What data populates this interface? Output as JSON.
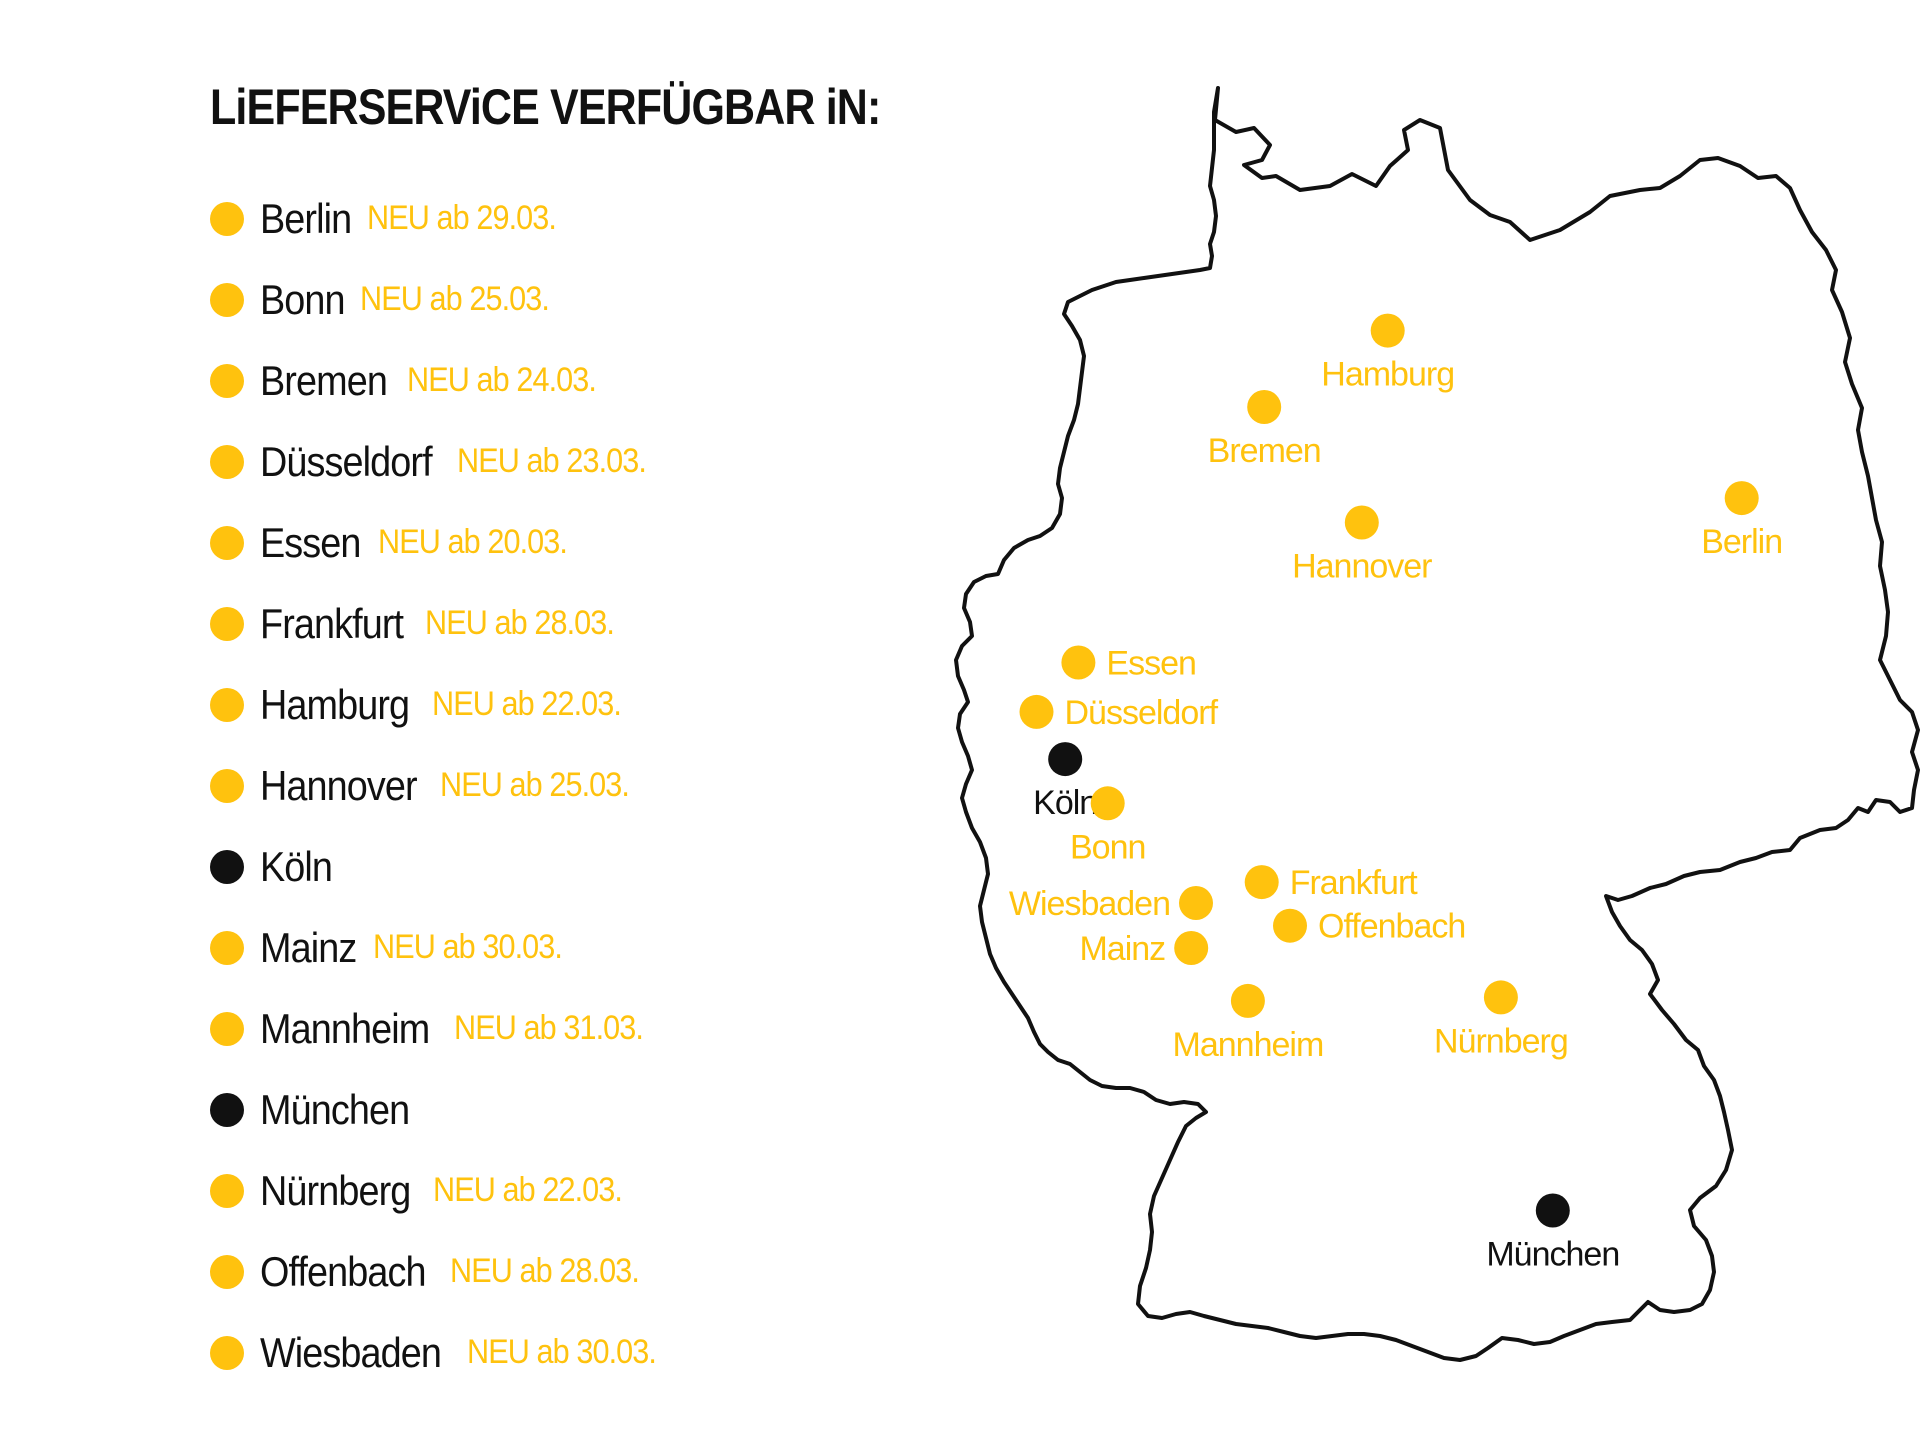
{
  "title": "LiEFERSERViCE VERFÜGBAR iN:",
  "colors": {
    "new": "#FFC20E",
    "existing": "#111111",
    "border": "#111111"
  },
  "cities": [
    {
      "name": "Berlin",
      "new_label": "NEU ab 29.03.",
      "status": "new"
    },
    {
      "name": "Bonn",
      "new_label": "NEU ab 25.03.",
      "status": "new"
    },
    {
      "name": "Bremen",
      "new_label": "NEU ab 24.03.",
      "status": "new"
    },
    {
      "name": "Düsseldorf",
      "new_label": "NEU ab 23.03.",
      "status": "new"
    },
    {
      "name": "Essen",
      "new_label": "NEU ab 20.03.",
      "status": "new"
    },
    {
      "name": "Frankfurt",
      "new_label": "NEU ab 28.03.",
      "status": "new"
    },
    {
      "name": "Hamburg",
      "new_label": "NEU ab 22.03.",
      "status": "new"
    },
    {
      "name": "Hannover",
      "new_label": "NEU ab 25.03.",
      "status": "new"
    },
    {
      "name": "Köln",
      "new_label": "",
      "status": "existing"
    },
    {
      "name": "Mainz",
      "new_label": "NEU ab 30.03.",
      "status": "new"
    },
    {
      "name": "Mannheim",
      "new_label": "NEU ab 31.03.",
      "status": "new"
    },
    {
      "name": "München",
      "new_label": "",
      "status": "existing"
    },
    {
      "name": "Nürnberg",
      "new_label": "NEU ab 22.03.",
      "status": "new"
    },
    {
      "name": "Offenbach",
      "new_label": "NEU ab 28.03.",
      "status": "new"
    },
    {
      "name": "Wiesbaden",
      "new_label": "NEU ab 30.03.",
      "status": "new"
    }
  ],
  "map": {
    "markers": [
      {
        "name": "Hamburg",
        "status": "new",
        "lat": 53.55,
        "lon": 9.99
      },
      {
        "name": "Bremen",
        "status": "new",
        "lat": 53.08,
        "lon": 8.8
      },
      {
        "name": "Hannover",
        "status": "new",
        "lat": 52.37,
        "lon": 9.74
      },
      {
        "name": "Berlin",
        "status": "new",
        "lat": 52.52,
        "lon": 13.4
      },
      {
        "name": "Essen",
        "status": "new",
        "lat": 51.46,
        "lon": 7.01
      },
      {
        "name": "Düsseldorf",
        "status": "new",
        "lat": 51.23,
        "lon": 6.78
      },
      {
        "name": "Köln",
        "status": "existing",
        "lat": 50.94,
        "lon": 6.96
      },
      {
        "name": "Bonn",
        "status": "new",
        "lat": 50.73,
        "lon": 7.1
      },
      {
        "name": "Wiesbaden",
        "status": "new",
        "lat": 50.08,
        "lon": 8.24
      },
      {
        "name": "Frankfurt",
        "status": "new",
        "lat": 50.11,
        "lon": 8.68
      },
      {
        "name": "Mainz",
        "status": "new",
        "lat": 50.0,
        "lon": 8.27
      },
      {
        "name": "Offenbach",
        "status": "new",
        "lat": 50.1,
        "lon": 8.76
      },
      {
        "name": "Mannheim",
        "status": "new",
        "lat": 49.49,
        "lon": 8.47
      },
      {
        "name": "Nürnberg",
        "status": "new",
        "lat": 49.45,
        "lon": 11.08
      },
      {
        "name": "München",
        "status": "existing",
        "lat": 48.14,
        "lon": 11.58
      }
    ]
  }
}
